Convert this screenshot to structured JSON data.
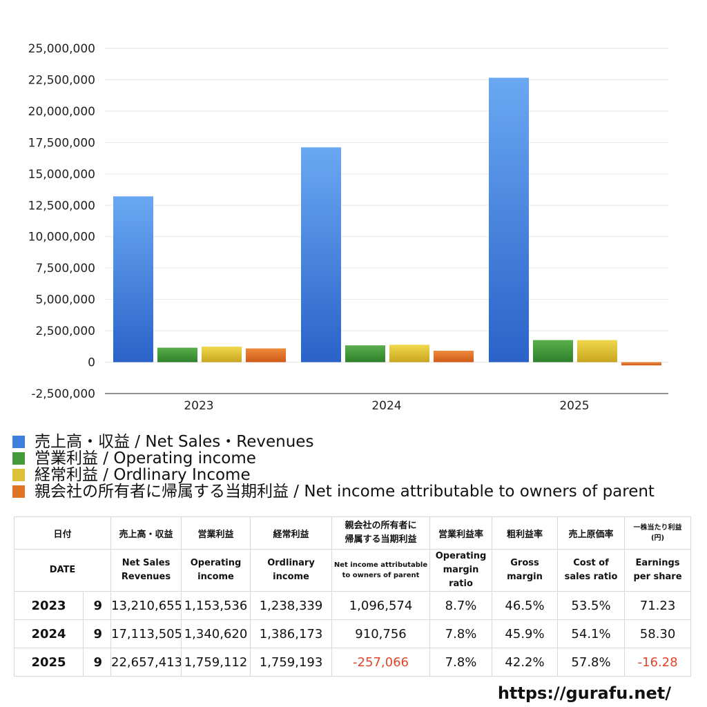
{
  "chart_data": {
    "type": "bar",
    "categories": [
      "2023",
      "2024",
      "2025"
    ],
    "series": [
      {
        "name": "売上高・収益 / Net Sales・Revenues",
        "values": [
          13210655,
          17113505,
          22657413
        ],
        "color_top": "#6aa8f2",
        "color_bottom": "#2b62c8"
      },
      {
        "name": "営業利益 / Operating income",
        "values": [
          1153536,
          1340620,
          1759112
        ],
        "color_top": "#5aaf4c",
        "color_bottom": "#2f7f2b"
      },
      {
        "name": "経常利益 / Ordlinary Income",
        "values": [
          1238339,
          1386173,
          1759193
        ],
        "color_top": "#f0d84c",
        "color_bottom": "#c9a51e"
      },
      {
        "name": "親会社の所有者に帰属する当期利益 / Net income attributable to owners of parent",
        "values": [
          1096574,
          910756,
          -257066
        ],
        "color_top": "#ee8a3c",
        "color_bottom": "#cf5a16"
      }
    ],
    "ylim": [
      -2500000,
      25000000
    ],
    "yticks": [
      25000000,
      22500000,
      20000000,
      17500000,
      15000000,
      12500000,
      10000000,
      7500000,
      5000000,
      2500000,
      0,
      -2500000
    ],
    "ytick_labels": [
      "25,000,000",
      "22,500,000",
      "20,000,000",
      "17,500,000",
      "15,000,000",
      "12,500,000",
      "10,000,000",
      "7,500,000",
      "5,000,000",
      "2,500,000",
      "0",
      "-2,500,000"
    ],
    "grid": true,
    "legend_position": "bottom-left",
    "title": "",
    "xlabel": "",
    "ylabel": ""
  },
  "legend": {
    "items": [
      {
        "label": "売上高・収益 / Net Sales・Revenues",
        "color": "#3f7fdc"
      },
      {
        "label": "営業利益 / Operating income",
        "color": "#449a3a"
      },
      {
        "label": "経常利益 / Ordlinary Income",
        "color": "#dcc236"
      },
      {
        "label": "親会社の所有者に帰属する当期利益 / Net income attributable to owners of parent",
        "color": "#e07426"
      }
    ]
  },
  "table": {
    "header_jp": {
      "date": "日付",
      "sales": "売上高・収益",
      "operating": "営業利益",
      "ordinary": "経常利益",
      "net_line1": "親会社の所有者に",
      "net_line2": "帰属する当期利益",
      "op_margin": "営業利益率",
      "gross": "粗利益率",
      "cost": "売上原価率",
      "eps_line1": "一株当たり利益",
      "eps_line2": "(円)"
    },
    "header_en": {
      "date": "DATE",
      "sales_line1": "Net Sales",
      "sales_line2": "Revenues",
      "operating_line1": "Operating",
      "operating_line2": "income",
      "ordinary_line1": "Ordlinary",
      "ordinary_line2": "income",
      "net_line1": "Net income attributable",
      "net_line2": "to owners of parent",
      "op_margin_line1": "Operating",
      "op_margin_line2": "margin",
      "op_margin_line3": "ratio",
      "gross_line1": "Gross",
      "gross_line2": "margin",
      "cost_line1": "Cost of",
      "cost_line2": "sales ratio",
      "eps_line1": "Earnings",
      "eps_line2": "per share"
    },
    "rows": [
      {
        "year": "2023",
        "month": "9",
        "sales": "13,210,655",
        "operating": "1,153,536",
        "ordinary": "1,238,339",
        "net": "1,096,574",
        "op_margin": "8.7%",
        "gross": "46.5%",
        "cost": "53.5%",
        "eps": "71.23"
      },
      {
        "year": "2024",
        "month": "9",
        "sales": "17,113,505",
        "operating": "1,340,620",
        "ordinary": "1,386,173",
        "net": "910,756",
        "op_margin": "7.8%",
        "gross": "45.9%",
        "cost": "54.1%",
        "eps": "58.30"
      },
      {
        "year": "2025",
        "month": "9",
        "sales": "22,657,413",
        "operating": "1,759,112",
        "ordinary": "1,759,193",
        "net": "-257,066",
        "op_margin": "7.8%",
        "gross": "42.2%",
        "cost": "57.8%",
        "eps": "-16.28"
      }
    ]
  },
  "footer": {
    "url": "https://gurafu.net/"
  }
}
